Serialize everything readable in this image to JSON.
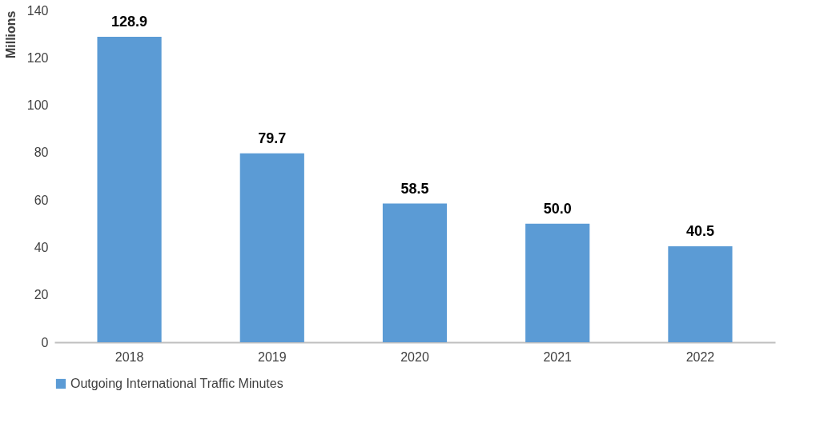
{
  "chart_data": {
    "type": "bar",
    "ylabel": "Millions",
    "categories": [
      "2018",
      "2019",
      "2020",
      "2021",
      "2022"
    ],
    "series": [
      {
        "name": "Outgoing International Traffic Minutes",
        "color": "#5b9bd5",
        "values": [
          128.9,
          79.7,
          58.5,
          50.0,
          40.5
        ],
        "value_labels": [
          "128.9",
          "79.7",
          "58.5",
          "50.0",
          "40.5"
        ]
      }
    ],
    "ylim": [
      0,
      140
    ],
    "yticks": [
      0,
      20,
      40,
      60,
      80,
      100,
      120,
      140
    ],
    "legend": "bottom"
  }
}
